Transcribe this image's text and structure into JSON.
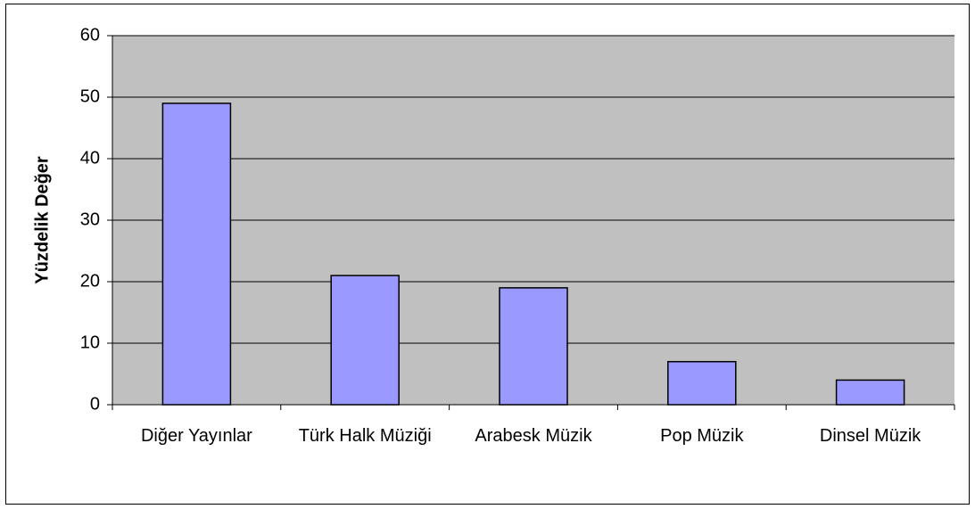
{
  "chart_data": {
    "type": "bar",
    "y_label": "Yüzdelik Değer",
    "categories": [
      "Diğer Yayınlar",
      "Türk Halk Müziği",
      "Arabesk Müzik",
      "Pop Müzik",
      "Dinsel Müzik"
    ],
    "values": [
      49,
      21,
      19,
      7,
      4
    ],
    "color": "#9999ff",
    "ylim": [
      0,
      60
    ],
    "yticks": [
      0,
      10,
      20,
      30,
      40,
      50,
      60
    ],
    "grid": true
  }
}
